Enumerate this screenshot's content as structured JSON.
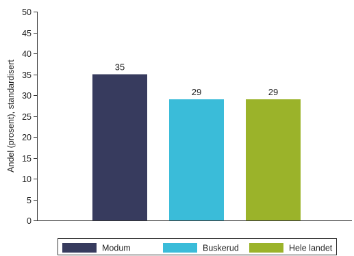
{
  "chart_data": {
    "type": "bar",
    "categories": [
      "Modum",
      "Buskerud",
      "Hele landet"
    ],
    "values": [
      35,
      29,
      29
    ],
    "colors": [
      "#373b5e",
      "#3abcd9",
      "#9bb32a"
    ],
    "ylabel": "Andel (prosent), standardisert",
    "xlabel": "",
    "ylim": [
      0,
      50
    ],
    "yticks": [
      0,
      5,
      10,
      15,
      20,
      25,
      30,
      35,
      40,
      45,
      50
    ],
    "grid": false,
    "legend": {
      "position": "bottom",
      "entries": [
        "Modum",
        "Buskerud",
        "Hele landet"
      ]
    }
  }
}
